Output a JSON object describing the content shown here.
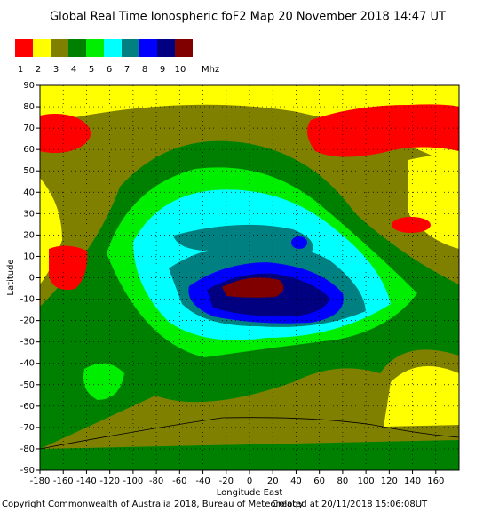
{
  "title": "Global Real Time Ionospheric foF2 Map  20 November 2018 14:47 UT",
  "legend": {
    "labels": [
      1,
      2,
      3,
      4,
      5,
      6,
      7,
      8,
      9,
      10
    ],
    "unit": "Mhz",
    "colors": [
      "#ff0000",
      "#ffff00",
      "#808000",
      "#008000",
      "#00ee00",
      "#00ffff",
      "#008080",
      "#0000ff",
      "#000080",
      "#800000"
    ]
  },
  "map": {
    "xlim": [
      -180,
      180
    ],
    "ylim": [
      -90,
      90
    ],
    "xticks": [
      -180,
      -160,
      -140,
      -120,
      -100,
      -80,
      -60,
      -40,
      -20,
      0,
      20,
      40,
      60,
      80,
      100,
      120,
      140,
      160
    ],
    "yticks": [
      -90,
      -80,
      -70,
      -60,
      -50,
      -40,
      -30,
      -20,
      -10,
      0,
      10,
      20,
      30,
      40,
      50,
      60,
      70,
      80,
      90
    ],
    "xlabel": "Longitude East",
    "ylabel": "Latitude"
  },
  "footer": {
    "copyright": "Copyright Commonwealth of Australia 2018, Bureau of Meteorology",
    "created": "Created at 20/11/2018 15:06:08UT"
  }
}
